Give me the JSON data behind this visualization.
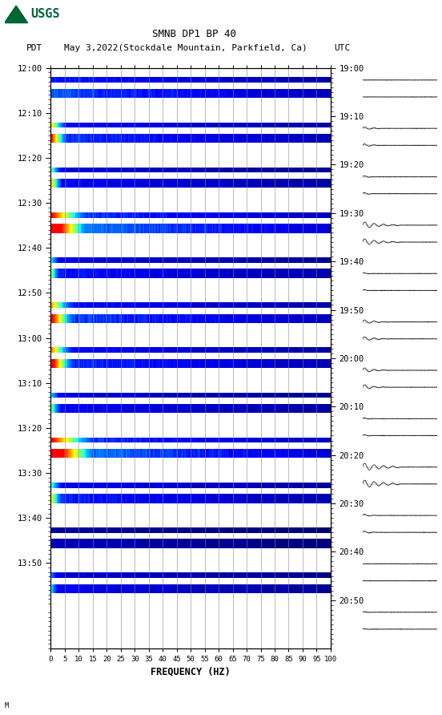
{
  "title_line1": "SMNB DP1 BP 40",
  "title_line2_left": "PDT",
  "title_line2_mid": "May 3,2022(Stockdale Mountain, Parkfield, Ca)",
  "title_line2_right": "UTC",
  "xlabel": "FREQUENCY (HZ)",
  "freq_ticks": [
    0,
    5,
    10,
    15,
    20,
    25,
    30,
    35,
    40,
    45,
    50,
    55,
    60,
    65,
    70,
    75,
    80,
    85,
    90,
    95,
    100
  ],
  "left_times": [
    "12:00",
    "12:10",
    "12:20",
    "12:30",
    "12:40",
    "12:50",
    "13:00",
    "13:10",
    "13:20",
    "13:30",
    "13:40",
    "13:50"
  ],
  "right_times": [
    "19:00",
    "19:10",
    "19:20",
    "19:30",
    "19:40",
    "19:50",
    "20:00",
    "20:10",
    "20:20",
    "20:30",
    "20:40",
    "20:50"
  ],
  "n_rows": 12,
  "bg": "#ffffff",
  "usgs_green": "#006633",
  "fig_width": 5.52,
  "fig_height": 8.92,
  "row_configs": [
    [
      0.38,
      false,
      0.0,
      0.0,
      0.0
    ],
    [
      0.36,
      true,
      0.82,
      0.1,
      1.5
    ],
    [
      0.3,
      true,
      0.72,
      0.07,
      1.2
    ],
    [
      0.44,
      true,
      0.97,
      0.22,
      3.0
    ],
    [
      0.32,
      true,
      0.65,
      0.06,
      1.0
    ],
    [
      0.38,
      true,
      0.85,
      0.14,
      2.0
    ],
    [
      0.36,
      true,
      0.88,
      0.13,
      2.5
    ],
    [
      0.3,
      true,
      0.62,
      0.07,
      1.0
    ],
    [
      0.44,
      true,
      0.97,
      0.26,
      3.5
    ],
    [
      0.34,
      true,
      0.68,
      0.08,
      1.5
    ],
    [
      0.2,
      false,
      0.0,
      0.0,
      0.0
    ],
    [
      0.28,
      true,
      0.55,
      0.05,
      0.8
    ]
  ]
}
